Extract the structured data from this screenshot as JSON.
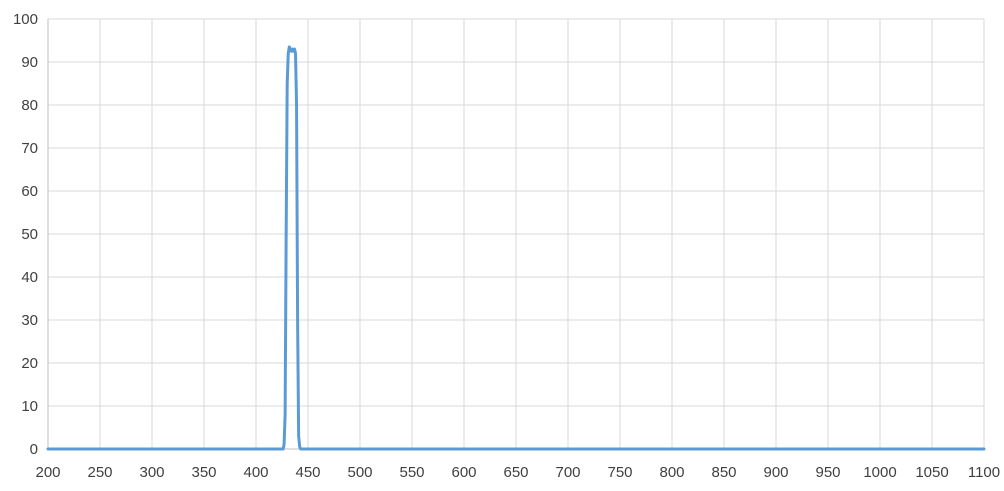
{
  "chart_data": {
    "type": "line",
    "title": "",
    "xlabel": "",
    "ylabel": "",
    "xlim": [
      200,
      1100
    ],
    "ylim": [
      0,
      100
    ],
    "x_ticks": [
      200,
      250,
      300,
      350,
      400,
      450,
      500,
      550,
      600,
      650,
      700,
      750,
      800,
      850,
      900,
      950,
      1000,
      1050,
      1100
    ],
    "y_ticks": [
      0,
      10,
      20,
      30,
      40,
      50,
      60,
      70,
      80,
      90,
      100
    ],
    "grid": true,
    "legend": "none",
    "colors": {
      "series": "#5b9bd5",
      "grid": "#d9d9d9",
      "axis": "#bfbfbf",
      "tick_text": "#404040"
    },
    "series": [
      {
        "x": [
          200,
          426,
          427,
          428,
          429,
          430,
          431,
          432,
          433,
          434,
          435,
          436,
          437,
          438,
          439,
          440,
          441,
          442,
          443,
          444,
          1100
        ],
        "y": [
          0,
          0,
          1,
          8,
          50,
          85,
          92,
          93.5,
          93,
          92.5,
          93,
          92.5,
          93,
          92,
          80,
          30,
          3,
          0.5,
          0,
          0,
          0
        ]
      }
    ]
  }
}
